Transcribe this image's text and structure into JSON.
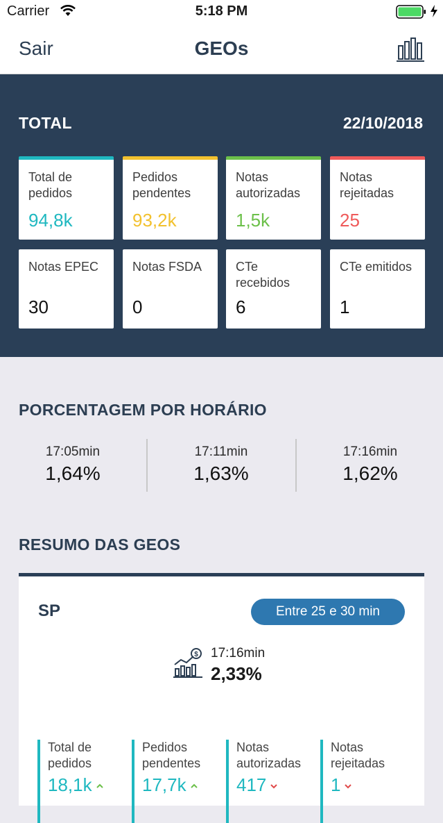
{
  "status_bar": {
    "carrier": "Carrier",
    "time": "5:18 PM"
  },
  "nav": {
    "back_label": "Sair",
    "title": "GEOs",
    "chart_icon": "bar-chart-icon"
  },
  "summary": {
    "title": "TOTAL",
    "date": "22/10/2018",
    "cards": [
      {
        "label": "Total de pedidos",
        "value": "94,8k",
        "color": "#1fb8c0"
      },
      {
        "label": "Pedidos pendentes",
        "value": "93,2k",
        "color": "#f2c12e"
      },
      {
        "label": "Notas autorizadas",
        "value": "1,5k",
        "color": "#6cc04a"
      },
      {
        "label": "Notas rejeitadas",
        "value": "25",
        "color": "#ef5a5a"
      },
      {
        "label": "Notas EPEC",
        "value": "30"
      },
      {
        "label": "Notas FSDA",
        "value": "0"
      },
      {
        "label": "CTe recebidos",
        "value": "6"
      },
      {
        "label": "CTe emitidos",
        "value": "1"
      }
    ]
  },
  "porcentagem": {
    "title": "PORCENTAGEM POR HORÁRIO",
    "items": [
      {
        "time": "17:05min",
        "value": "1,64%"
      },
      {
        "time": "17:11min",
        "value": "1,63%"
      },
      {
        "time": "17:16min",
        "value": "1,62%"
      }
    ]
  },
  "resumo": {
    "title": "RESUMO DAS GEOS",
    "geo": {
      "name": "SP",
      "badge": "Entre 25 e 30 min",
      "time": "17:16min",
      "value": "2,33%",
      "metrics": [
        {
          "label": "Total de pedidos",
          "value": "18,1k",
          "trend": "up"
        },
        {
          "label": "Pedidos pendentes",
          "value": "17,7k",
          "trend": "up"
        },
        {
          "label": "Notas autorizadas",
          "value": "417",
          "trend": "down"
        },
        {
          "label": "Notas rejeitadas",
          "value": "1",
          "trend": "down"
        }
      ]
    }
  },
  "colors": {
    "navy": "#2a3f57",
    "teal": "#1fb8c0",
    "badge": "#2e78b0",
    "up": "#6cc04a",
    "down": "#e04a4a"
  }
}
